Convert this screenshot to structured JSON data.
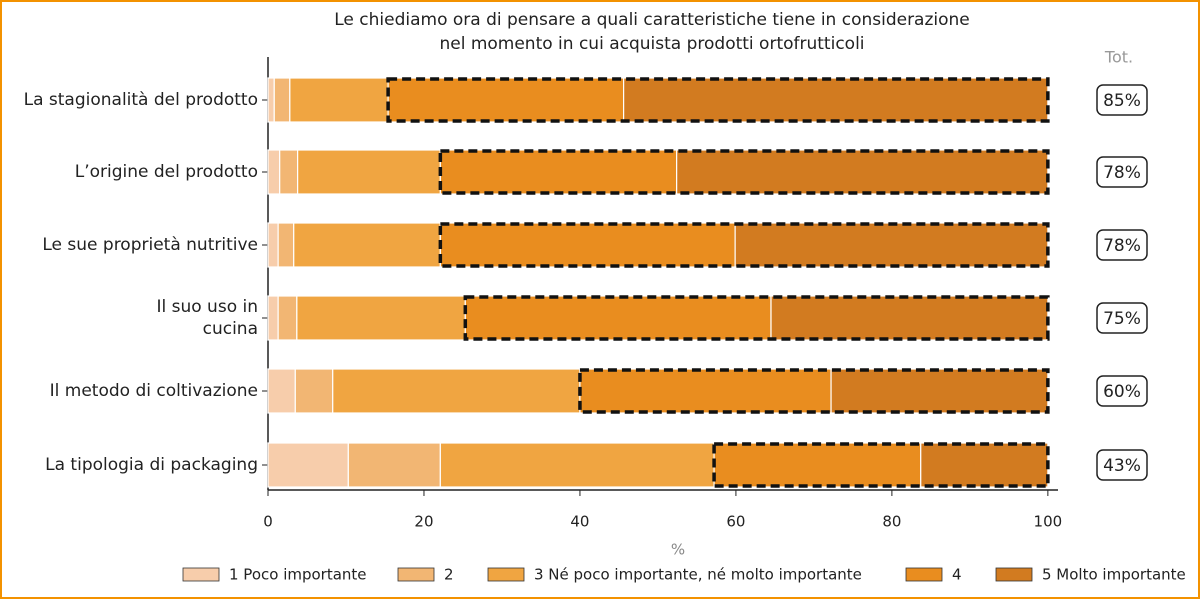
{
  "chart_data": {
    "type": "stacked-barh",
    "title": "Le chiediamo ora di pensare a quali caratteristiche tiene in considerazione\nnel momento in cui acquista prodotti ortofrutticoli",
    "xlabel": "%",
    "categories": [
      "La stagionalità del prodotto",
      "L’origine del prodotto",
      "Le sue proprietà nutritive",
      "Il suo uso in\ncucina",
      "Il metodo di coltivazione",
      "La tipologia di packaging"
    ],
    "series": [
      {
        "name": "1 Poco importante",
        "color": "#f7cdab",
        "values": [
          0.8,
          1.5,
          1.3,
          1.3,
          3.5,
          10.3
        ]
      },
      {
        "name": "2",
        "color": "#f2b673",
        "values": [
          2.0,
          2.3,
          2.0,
          2.4,
          4.8,
          11.8
        ]
      },
      {
        "name": "3 Né poco importante, né molto importante",
        "color": "#f0a541",
        "values": [
          12.6,
          18.3,
          18.8,
          21.6,
          31.7,
          35.1
        ]
      },
      {
        "name": "4",
        "color": "#e98d1f",
        "values": [
          30.2,
          30.3,
          37.8,
          39.2,
          32.2,
          26.5
        ]
      },
      {
        "name": "5 Molto importante",
        "color": "#d27b20",
        "values": [
          54.4,
          47.6,
          40.1,
          35.5,
          27.8,
          16.3
        ]
      }
    ],
    "xlim": [
      0,
      101.3
    ],
    "xticks": [
      0,
      20,
      40,
      60,
      80,
      100
    ],
    "totals": {
      "title": "Tot.",
      "values": [
        85,
        78,
        78,
        75,
        60,
        43
      ],
      "value_labels": [
        "85%",
        "78%",
        "78%",
        "75%",
        "60%",
        "43%"
      ]
    },
    "legend": "bottom"
  }
}
